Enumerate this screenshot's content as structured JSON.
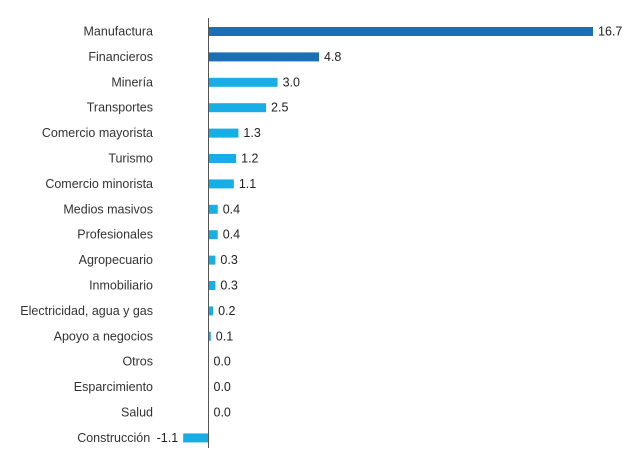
{
  "chart_data": {
    "type": "bar",
    "orientation": "horizontal",
    "categories": [
      "Manufactura",
      "Financieros",
      "Minería",
      "Transportes",
      "Comercio mayorista",
      "Turismo",
      "Comercio minorista",
      "Medios masivos",
      "Profesionales",
      "Agropecuario",
      "Inmobiliario",
      "Electricidad, agua y gas",
      "Apoyo a negocios",
      "Otros",
      "Esparcimiento",
      "Salud",
      "Construcción"
    ],
    "values": [
      16.7,
      4.8,
      3.0,
      2.5,
      1.3,
      1.2,
      1.1,
      0.4,
      0.4,
      0.3,
      0.3,
      0.2,
      0.1,
      0.0,
      0.0,
      0.0,
      -1.1
    ],
    "value_labels": [
      "16.7",
      "4.8",
      "3.0",
      "2.5",
      "1.3",
      "1.2",
      "1.1",
      "0.4",
      "0.4",
      "0.3",
      "0.3",
      "0.2",
      "0.1",
      "0.0",
      "0.0",
      "0.0",
      "-1.1"
    ],
    "highlighted": [
      "Manufactura",
      "Financieros"
    ],
    "colors": {
      "highlight": "#1a6fb6",
      "default": "#17aee6",
      "axis": "#555555"
    },
    "grid": false,
    "legend": "none",
    "title": "",
    "xlabel": "",
    "ylabel": "",
    "xlim": [
      -1.1,
      16.7
    ]
  }
}
